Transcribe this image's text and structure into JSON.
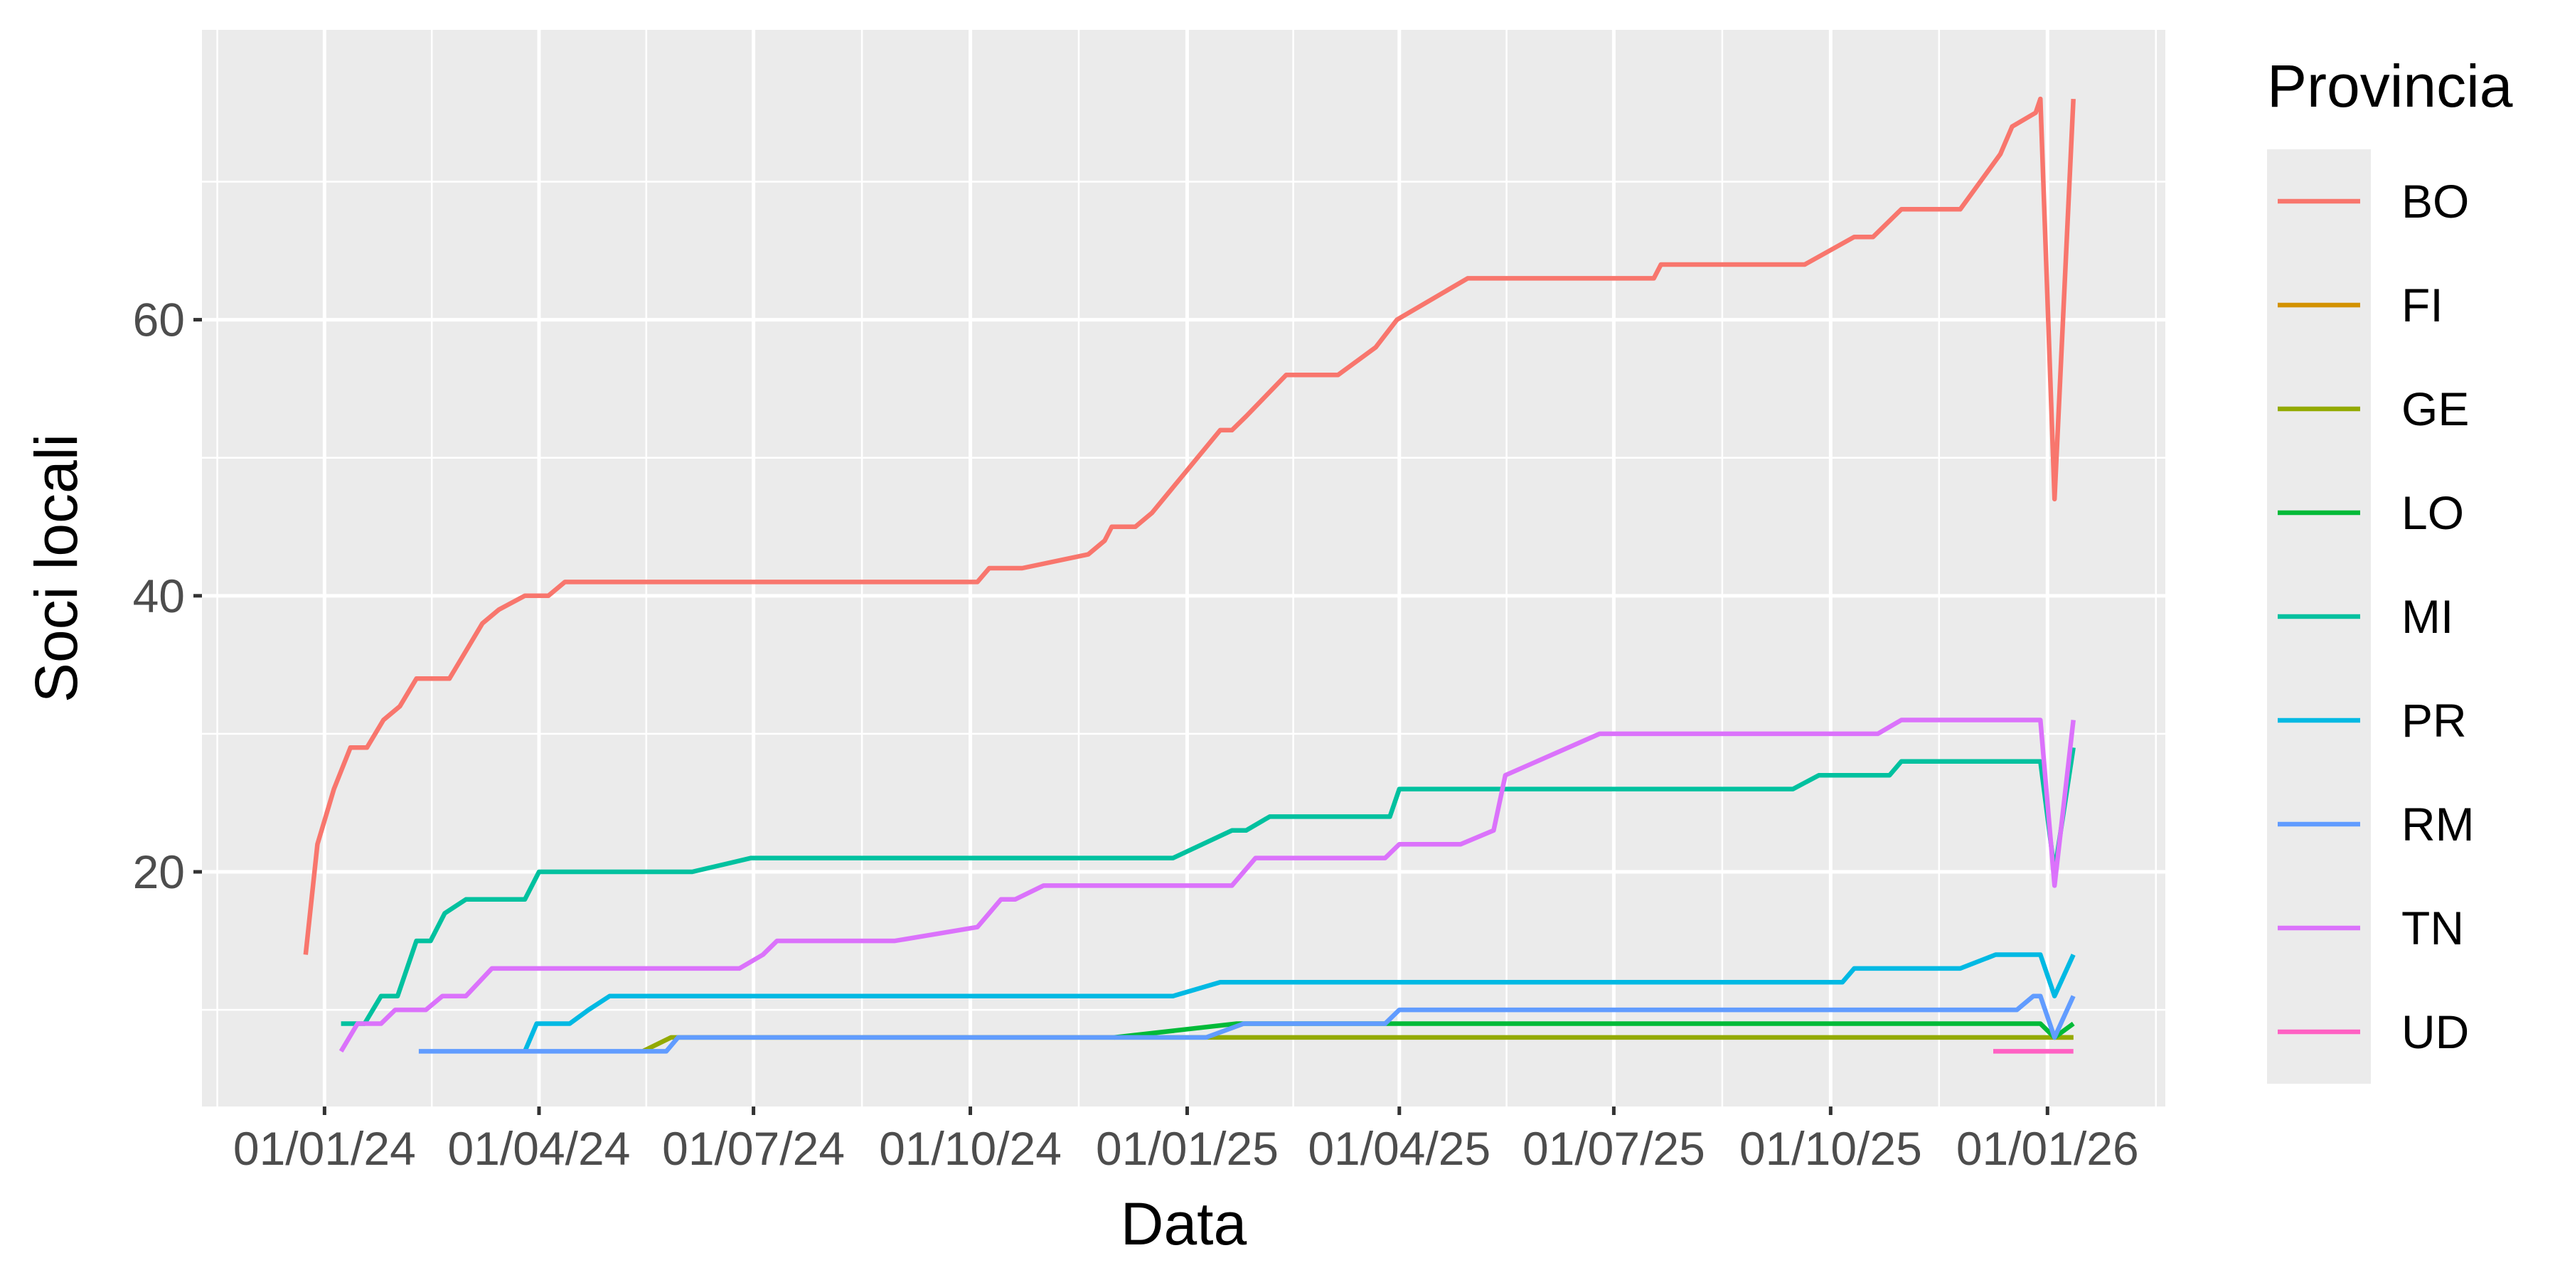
{
  "chart_data": {
    "type": "line",
    "xlabel": "Data",
    "ylabel": "Soci locali",
    "x_axis": {
      "scale": "date",
      "range": [
        "2023-11-10",
        "2026-02-20"
      ],
      "tick_values": [
        "2024-01-01",
        "2024-04-01",
        "2024-07-01",
        "2024-10-01",
        "2025-01-01",
        "2025-04-01",
        "2025-07-01",
        "2025-10-01",
        "2026-01-01"
      ],
      "tick_labels": [
        "01/01/24",
        "01/04/24",
        "01/07/24",
        "01/10/24",
        "01/01/25",
        "01/04/25",
        "01/07/25",
        "01/10/25",
        "01/01/26"
      ]
    },
    "y_axis": {
      "range": [
        3,
        81
      ],
      "ticks": [
        20,
        40,
        60
      ],
      "tick_labels": [
        "20",
        "40",
        "60"
      ]
    },
    "grid": true,
    "legend": {
      "title": "Provincia",
      "placement": "right",
      "entries": [
        "BO",
        "FI",
        "GE",
        "LO",
        "MI",
        "PR",
        "RM",
        "TN",
        "UD"
      ]
    },
    "series": [
      {
        "name": "BO",
        "color": "#F8766D",
        "points": [
          [
            "2023-12-24",
            14
          ],
          [
            "2023-12-29",
            22
          ],
          [
            "2024-01-05",
            26
          ],
          [
            "2024-01-12",
            29
          ],
          [
            "2024-01-19",
            29
          ],
          [
            "2024-01-26",
            31
          ],
          [
            "2024-02-02",
            32
          ],
          [
            "2024-02-09",
            34
          ],
          [
            "2024-02-23",
            34
          ],
          [
            "2024-03-01",
            36
          ],
          [
            "2024-03-08",
            38
          ],
          [
            "2024-03-15",
            39
          ],
          [
            "2024-03-26",
            40
          ],
          [
            "2024-04-05",
            40
          ],
          [
            "2024-04-12",
            41
          ],
          [
            "2024-10-04",
            41
          ],
          [
            "2024-10-09",
            42
          ],
          [
            "2024-10-23",
            42
          ],
          [
            "2024-11-20",
            43
          ],
          [
            "2024-11-27",
            44
          ],
          [
            "2024-11-30",
            45
          ],
          [
            "2024-12-10",
            45
          ],
          [
            "2024-12-17",
            46
          ],
          [
            "2025-01-15",
            52
          ],
          [
            "2025-01-20",
            52
          ],
          [
            "2025-01-26",
            53
          ],
          [
            "2025-02-12",
            56
          ],
          [
            "2025-03-06",
            56
          ],
          [
            "2025-03-22",
            58
          ],
          [
            "2025-03-31",
            60
          ],
          [
            "2025-04-30",
            63
          ],
          [
            "2025-07-18",
            63
          ],
          [
            "2025-07-21",
            64
          ],
          [
            "2025-09-20",
            64
          ],
          [
            "2025-10-11",
            66
          ],
          [
            "2025-10-19",
            66
          ],
          [
            "2025-10-31",
            68
          ],
          [
            "2025-11-25",
            68
          ],
          [
            "2025-12-12",
            72
          ],
          [
            "2025-12-17",
            74
          ],
          [
            "2025-12-27",
            75
          ],
          [
            "2025-12-29",
            76
          ],
          [
            "2026-01-04",
            47
          ],
          [
            "2026-01-12",
            76
          ]
        ]
      },
      {
        "name": "FI",
        "color": "#D39200",
        "points": [
          [
            "2026-01-04",
            8
          ],
          [
            "2026-01-12",
            8
          ]
        ]
      },
      {
        "name": "GE",
        "color": "#93AA00",
        "points": [
          [
            "2024-05-15",
            7
          ],
          [
            "2024-05-27",
            8
          ],
          [
            "2025-01-22",
            8
          ],
          [
            "2025-12-29",
            8
          ],
          [
            "2026-01-04",
            8
          ],
          [
            "2026-01-12",
            8
          ]
        ]
      },
      {
        "name": "LO",
        "color": "#00BA38",
        "points": [
          [
            "2024-12-01",
            8
          ],
          [
            "2025-01-22",
            9
          ],
          [
            "2025-12-29",
            9
          ],
          [
            "2026-01-04",
            8
          ],
          [
            "2026-01-12",
            9
          ]
        ]
      },
      {
        "name": "MI",
        "color": "#00C19F",
        "points": [
          [
            "2024-01-08",
            9
          ],
          [
            "2024-01-18",
            9
          ],
          [
            "2024-01-25",
            11
          ],
          [
            "2024-02-01",
            11
          ],
          [
            "2024-02-09",
            15
          ],
          [
            "2024-02-15",
            15
          ],
          [
            "2024-02-21",
            17
          ],
          [
            "2024-03-01",
            18
          ],
          [
            "2024-03-26",
            18
          ],
          [
            "2024-04-01",
            20
          ],
          [
            "2024-06-05",
            20
          ],
          [
            "2024-06-30",
            21
          ],
          [
            "2024-12-26",
            21
          ],
          [
            "2025-01-20",
            23
          ],
          [
            "2025-01-26",
            23
          ],
          [
            "2025-02-05",
            24
          ],
          [
            "2025-03-28",
            24
          ],
          [
            "2025-04-01",
            26
          ],
          [
            "2025-09-15",
            26
          ],
          [
            "2025-09-26",
            27
          ],
          [
            "2025-10-26",
            27
          ],
          [
            "2025-10-31",
            28
          ],
          [
            "2025-12-29",
            28
          ],
          [
            "2026-01-04",
            20
          ],
          [
            "2026-01-12",
            29
          ]
        ]
      },
      {
        "name": "PR",
        "color": "#00B9E3",
        "points": [
          [
            "2024-03-26",
            7
          ],
          [
            "2024-03-31",
            9
          ],
          [
            "2024-04-14",
            9
          ],
          [
            "2024-04-22",
            10
          ],
          [
            "2024-05-01",
            11
          ],
          [
            "2024-12-26",
            11
          ],
          [
            "2025-01-15",
            12
          ],
          [
            "2025-10-06",
            12
          ],
          [
            "2025-10-11",
            13
          ],
          [
            "2025-11-25",
            13
          ],
          [
            "2025-12-10",
            14
          ],
          [
            "2025-12-29",
            14
          ],
          [
            "2026-01-04",
            11
          ],
          [
            "2026-01-12",
            14
          ]
        ]
      },
      {
        "name": "RM",
        "color": "#619CFF",
        "points": [
          [
            "2024-02-10",
            7
          ],
          [
            "2024-05-25",
            7
          ],
          [
            "2024-05-30",
            8
          ],
          [
            "2025-01-09",
            8
          ],
          [
            "2025-01-25",
            9
          ],
          [
            "2025-03-26",
            9
          ],
          [
            "2025-04-01",
            10
          ],
          [
            "2025-12-19",
            10
          ],
          [
            "2025-12-26",
            11
          ],
          [
            "2025-12-29",
            11
          ],
          [
            "2026-01-04",
            8
          ],
          [
            "2026-01-12",
            11
          ]
        ]
      },
      {
        "name": "TN",
        "color": "#DB72FB",
        "points": [
          [
            "2024-01-08",
            7
          ],
          [
            "2024-01-15",
            9
          ],
          [
            "2024-01-25",
            9
          ],
          [
            "2024-01-31",
            10
          ],
          [
            "2024-02-13",
            10
          ],
          [
            "2024-02-20",
            11
          ],
          [
            "2024-03-01",
            11
          ],
          [
            "2024-03-12",
            13
          ],
          [
            "2024-06-25",
            13
          ],
          [
            "2024-07-05",
            14
          ],
          [
            "2024-07-11",
            15
          ],
          [
            "2024-08-30",
            15
          ],
          [
            "2024-10-04",
            16
          ],
          [
            "2024-10-14",
            18
          ],
          [
            "2024-10-20",
            18
          ],
          [
            "2024-11-01",
            19
          ],
          [
            "2025-01-20",
            19
          ],
          [
            "2025-01-30",
            21
          ],
          [
            "2025-03-26",
            21
          ],
          [
            "2025-04-01",
            22
          ],
          [
            "2025-04-27",
            22
          ],
          [
            "2025-05-11",
            23
          ],
          [
            "2025-05-16",
            27
          ],
          [
            "2025-06-25",
            30
          ],
          [
            "2025-10-21",
            30
          ],
          [
            "2025-10-31",
            31
          ],
          [
            "2025-12-29",
            31
          ],
          [
            "2026-01-04",
            19
          ],
          [
            "2026-01-12",
            31
          ]
        ]
      },
      {
        "name": "UD",
        "color": "#FF61C3",
        "points": [
          [
            "2025-12-09",
            7
          ],
          [
            "2026-01-12",
            7
          ]
        ]
      }
    ]
  }
}
